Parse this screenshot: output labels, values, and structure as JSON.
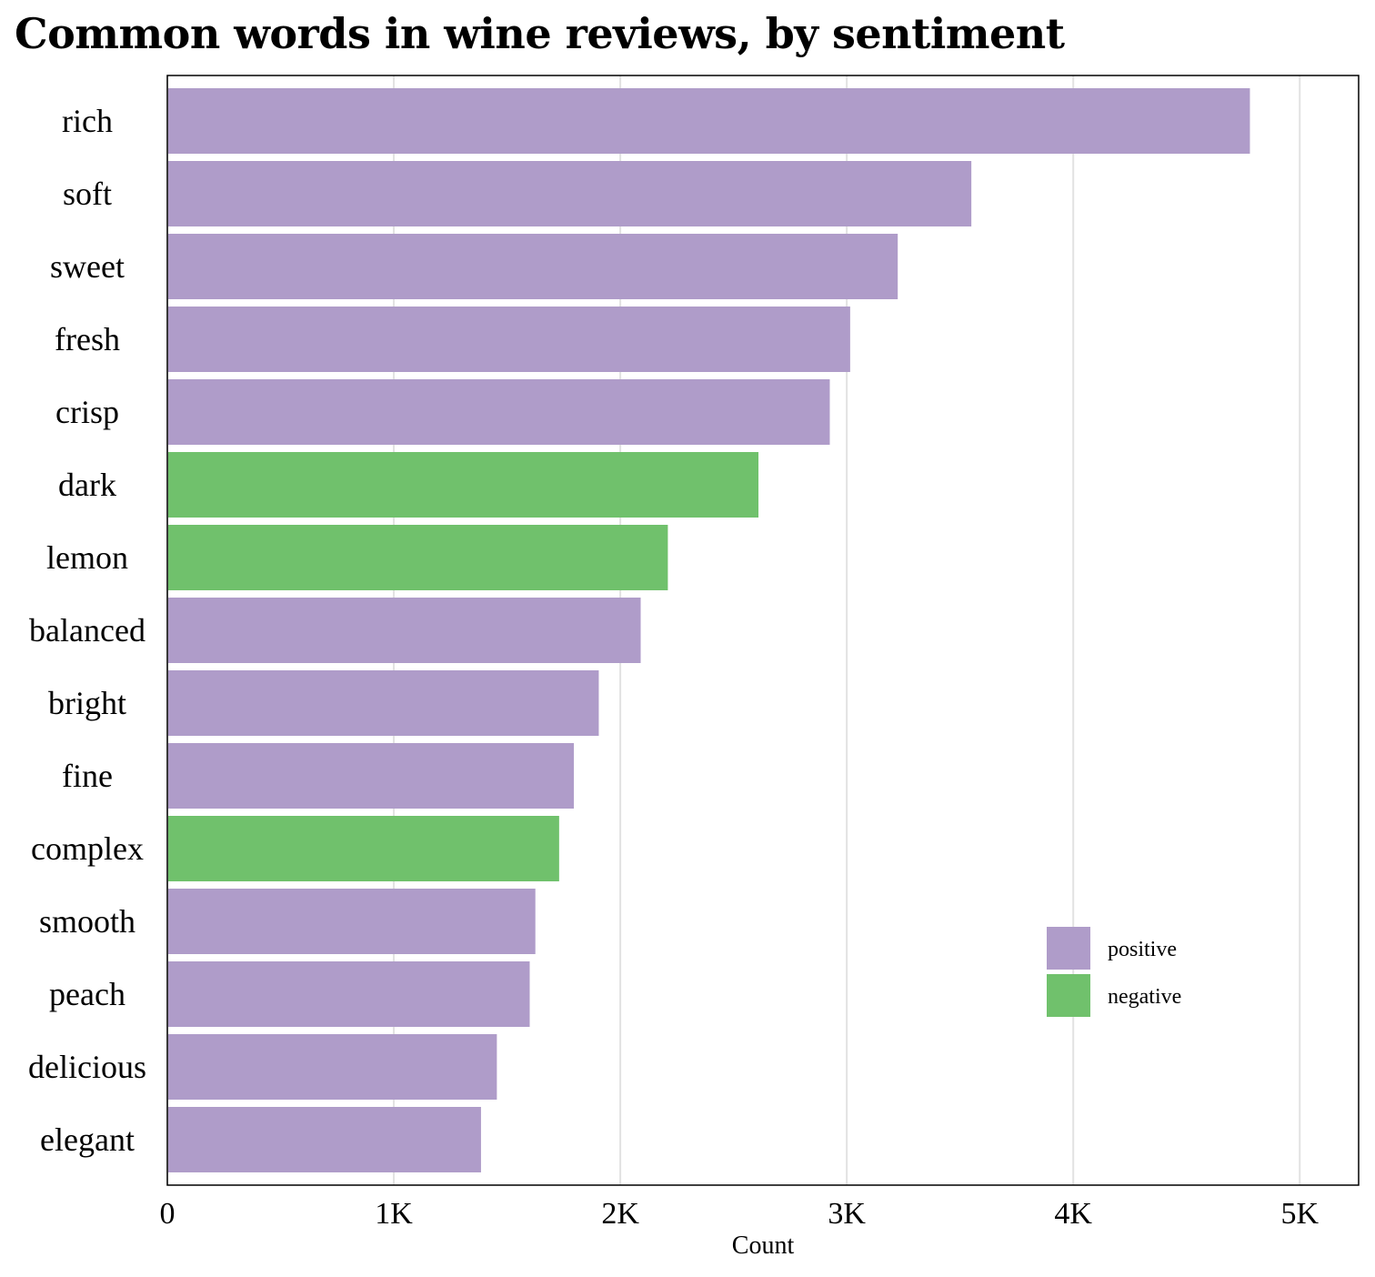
{
  "chart_data": {
    "type": "bar",
    "orientation": "horizontal",
    "title": "Common words in wine reviews, by sentiment",
    "xlabel": "Count",
    "ylabel": "",
    "xlim": [
      0,
      5260
    ],
    "xticks": [
      0,
      1000,
      2000,
      3000,
      4000,
      5000
    ],
    "xtick_labels": [
      "0",
      "1K",
      "2K",
      "3K",
      "4K",
      "5K"
    ],
    "grid": "vertical",
    "legend_placement": "bottom-right",
    "legend": [
      {
        "name": "positive",
        "color": "#af9cc9"
      },
      {
        "name": "negative",
        "color": "#70c16c"
      }
    ],
    "categories": [
      "rich",
      "soft",
      "sweet",
      "fresh",
      "crisp",
      "dark",
      "lemon",
      "balanced",
      "bright",
      "fine",
      "complex",
      "smooth",
      "peach",
      "delicious",
      "elegant"
    ],
    "values": [
      4780,
      3550,
      3225,
      3015,
      2925,
      2610,
      2210,
      2090,
      1905,
      1795,
      1730,
      1625,
      1600,
      1455,
      1385
    ],
    "sentiment": [
      "positive",
      "positive",
      "positive",
      "positive",
      "positive",
      "negative",
      "negative",
      "positive",
      "positive",
      "positive",
      "negative",
      "positive",
      "positive",
      "positive",
      "positive"
    ]
  }
}
